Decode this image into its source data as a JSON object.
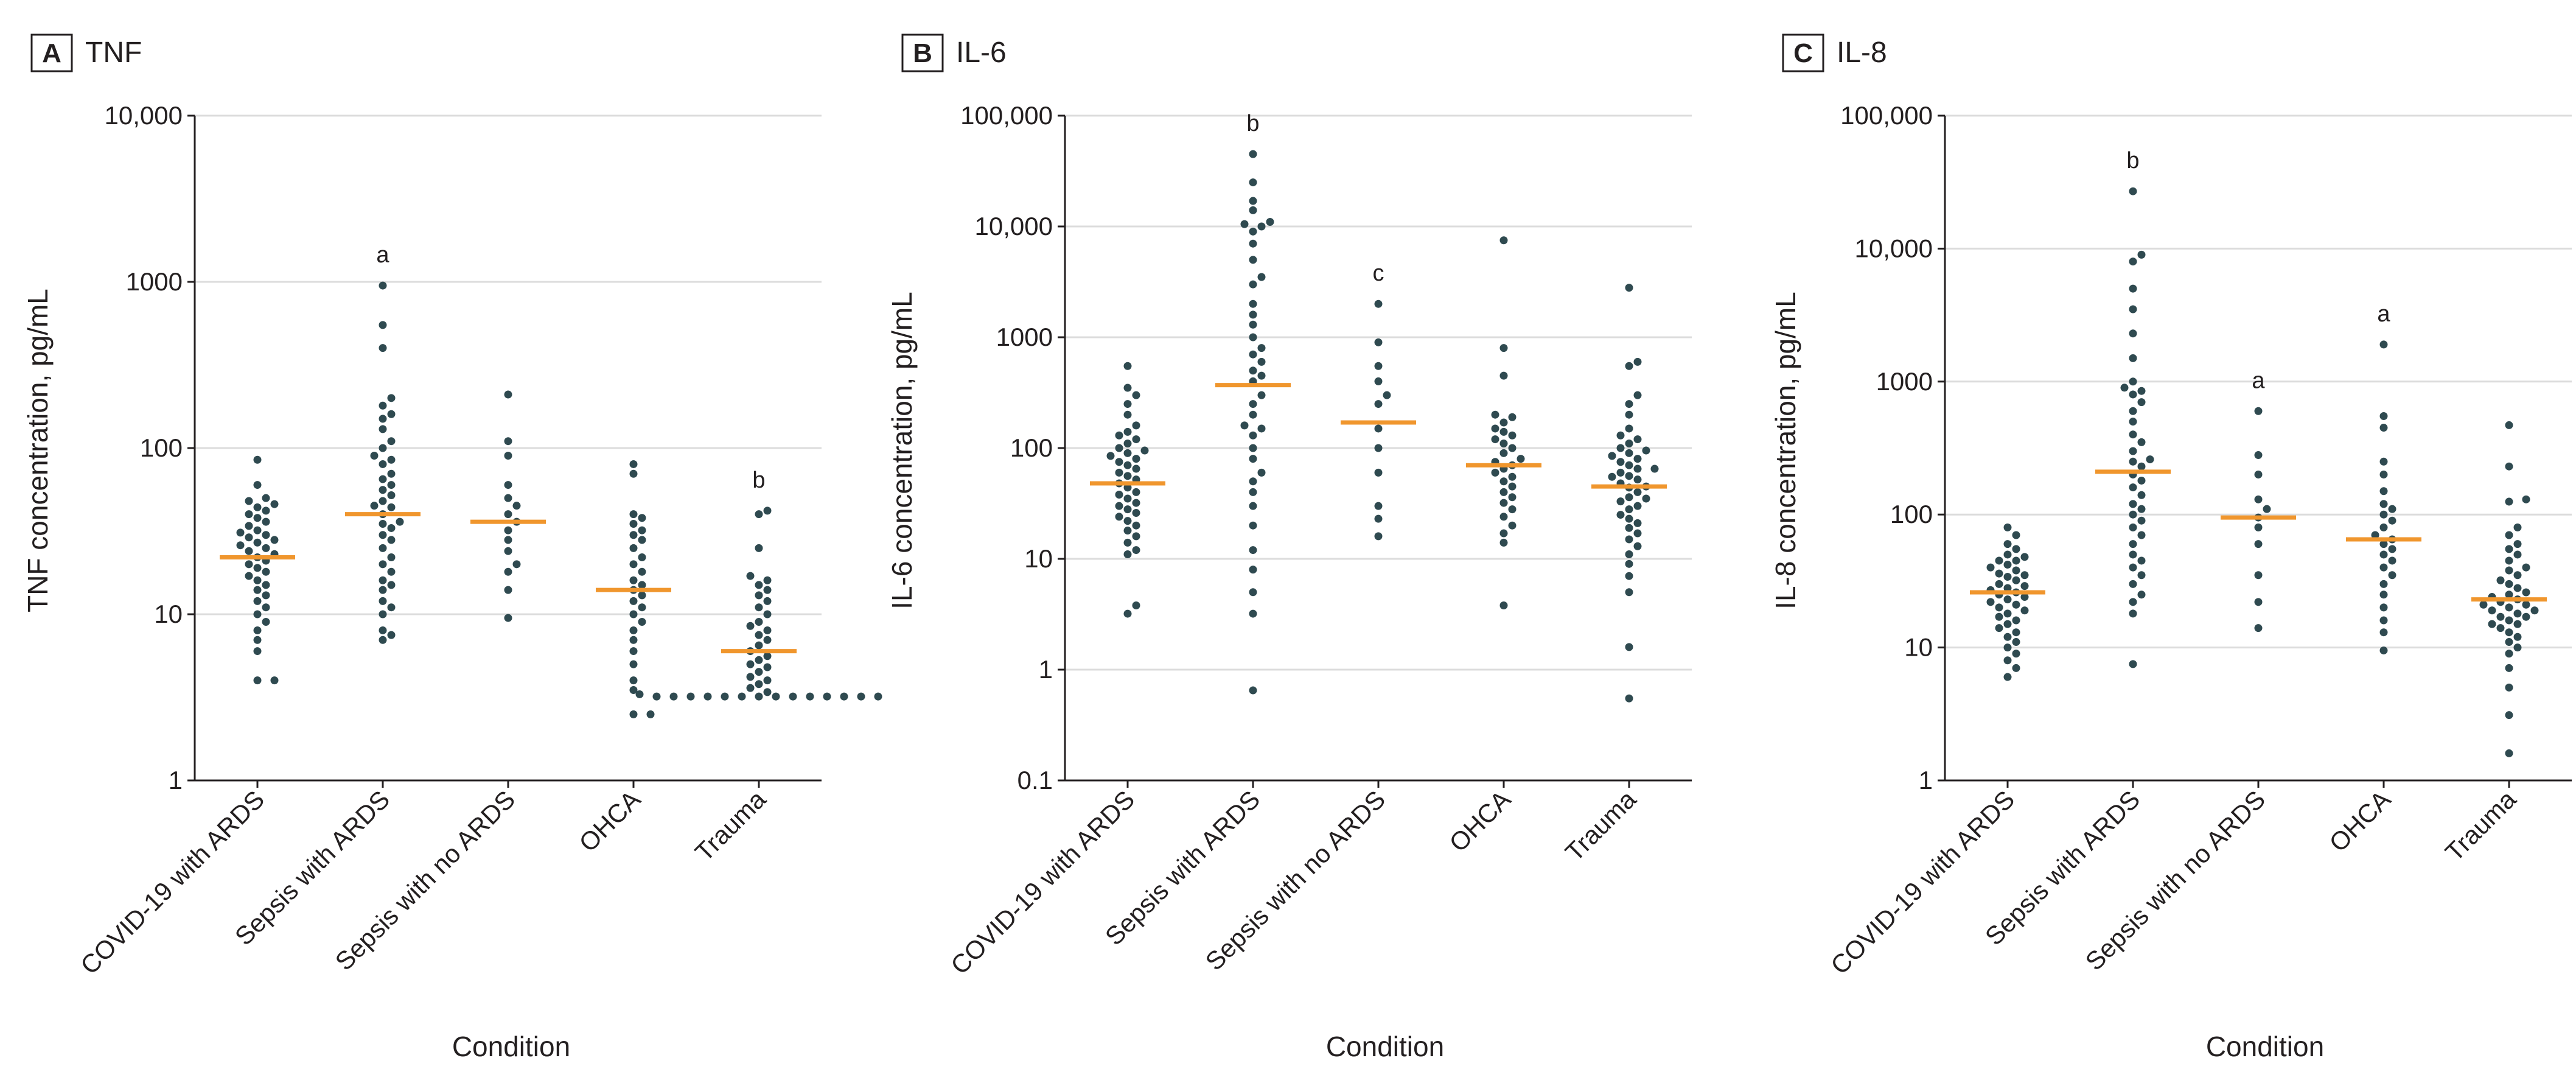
{
  "colors": {
    "point": "#2f4a50",
    "median": "#f0962d",
    "grid": "#dcdcdc",
    "axis": "#231f20"
  },
  "chart_data": [
    {
      "type": "scatter",
      "panel_letter": "A",
      "title": "TNF",
      "xlabel": "Condition",
      "ylabel": "TNF concentration, pg/mL",
      "yscale": "log",
      "ylim": [
        1,
        10000
      ],
      "yticks": [
        1,
        10,
        100,
        1000,
        10000
      ],
      "ytick_labels": [
        "1",
        "10",
        "100",
        "1000",
        "10,000"
      ],
      "categories": [
        "COVID-19 with ARDS",
        "Sepsis with ARDS",
        "Sepsis with no ARDS",
        "OHCA",
        "Trauma"
      ],
      "medians": [
        22,
        40,
        36,
        14,
        6
      ],
      "significance": [
        "",
        "a",
        "",
        "",
        "b"
      ],
      "points": [
        [
          4,
          4,
          8,
          9,
          10,
          11,
          12,
          13,
          14,
          15,
          16,
          17,
          18,
          19,
          20,
          21,
          22,
          23,
          24,
          25,
          26,
          27,
          28,
          29,
          30,
          31,
          32,
          34,
          36,
          38,
          40,
          42,
          44,
          46,
          48,
          50,
          60,
          85,
          6,
          7
        ],
        [
          7,
          7.5,
          8,
          10,
          11,
          12,
          14,
          16,
          18,
          20,
          22,
          25,
          28,
          30,
          33,
          36,
          40,
          44,
          48,
          52,
          56,
          60,
          65,
          70,
          80,
          85,
          90,
          100,
          110,
          130,
          150,
          160,
          180,
          200,
          400,
          550,
          950,
          15,
          35,
          45
        ],
        [
          9.5,
          14,
          18,
          20,
          24,
          28,
          32,
          36,
          40,
          45,
          50,
          60,
          90,
          110,
          210
        ],
        [
          2.5,
          2.5,
          3.5,
          4,
          5,
          6,
          7,
          8,
          9,
          10,
          11,
          12,
          13,
          14,
          15,
          16,
          18,
          20,
          22,
          25,
          28,
          30,
          32,
          35,
          38,
          40,
          70,
          80
        ],
        [
          3.2,
          3.2,
          3.2,
          3.2,
          3.2,
          3.2,
          3.2,
          3.2,
          3.2,
          3.2,
          3.2,
          3.2,
          3.2,
          3.2,
          3.3,
          3.4,
          3.6,
          3.8,
          4,
          4.2,
          4.5,
          4.8,
          5,
          5.3,
          5.6,
          6,
          6.5,
          7,
          7.5,
          8,
          8.5,
          9,
          10,
          11,
          12,
          13,
          14,
          15,
          16,
          17,
          25,
          40,
          42
        ]
      ]
    },
    {
      "type": "scatter",
      "panel_letter": "B",
      "title": "IL-6",
      "xlabel": "Condition",
      "ylabel": "IL-6 concentration, pg/mL",
      "yscale": "log",
      "ylim": [
        0.1,
        100000
      ],
      "yticks": [
        0.1,
        1,
        10,
        100,
        1000,
        10000,
        100000
      ],
      "ytick_labels": [
        "0.1",
        "1",
        "10",
        "100",
        "1000",
        "10,000",
        "100,000"
      ],
      "categories": [
        "COVID-19 with ARDS",
        "Sepsis with ARDS",
        "Sepsis with no ARDS",
        "OHCA",
        "Trauma"
      ],
      "medians": [
        48,
        370,
        170,
        70,
        45
      ],
      "significance": [
        "",
        "b",
        "c",
        "",
        ""
      ],
      "points": [
        [
          3.2,
          3.8,
          11,
          12,
          14,
          16,
          18,
          20,
          22,
          24,
          26,
          28,
          30,
          32,
          35,
          38,
          40,
          44,
          48,
          52,
          56,
          60,
          65,
          70,
          75,
          80,
          85,
          90,
          95,
          100,
          110,
          120,
          130,
          140,
          160,
          200,
          250,
          300,
          350,
          550
        ],
        [
          0.65,
          3.2,
          5,
          8,
          12,
          20,
          30,
          40,
          50,
          60,
          80,
          100,
          130,
          160,
          200,
          250,
          300,
          400,
          500,
          600,
          800,
          1000,
          1300,
          1600,
          2000,
          3000,
          3500,
          5000,
          7000,
          9000,
          10000,
          10500,
          11000,
          14000,
          17000,
          25000,
          45000,
          450,
          700,
          150
        ],
        [
          16,
          23,
          30,
          60,
          100,
          150,
          250,
          300,
          400,
          550,
          900,
          2000
        ],
        [
          3.8,
          14,
          17,
          20,
          24,
          28,
          32,
          36,
          40,
          45,
          50,
          55,
          60,
          65,
          70,
          75,
          80,
          90,
          100,
          110,
          120,
          130,
          140,
          150,
          170,
          190,
          200,
          450,
          800,
          7500
        ],
        [
          0.55,
          1.6,
          5,
          7,
          9,
          11,
          13,
          15,
          17,
          19,
          21,
          23,
          25,
          28,
          30,
          33,
          36,
          40,
          44,
          48,
          52,
          56,
          60,
          65,
          70,
          75,
          80,
          85,
          90,
          95,
          100,
          110,
          120,
          130,
          150,
          200,
          250,
          300,
          550,
          600,
          2800,
          35,
          45,
          55,
          65
        ]
      ]
    },
    {
      "type": "scatter",
      "panel_letter": "C",
      "title": "IL-8",
      "xlabel": "Condition",
      "ylabel": "IL-8 concentration, pg/mL",
      "yscale": "log",
      "ylim": [
        1,
        100000
      ],
      "yticks": [
        1,
        10,
        100,
        1000,
        10000,
        100000
      ],
      "ytick_labels": [
        "1",
        "10",
        "100",
        "1000",
        "10,000",
        "100,000"
      ],
      "categories": [
        "COVID-19 with ARDS",
        "Sepsis with ARDS",
        "Sepsis with no ARDS",
        "OHCA",
        "Trauma"
      ],
      "medians": [
        26,
        210,
        95,
        65,
        23
      ],
      "significance": [
        "",
        "b",
        "a",
        "a",
        ""
      ],
      "points": [
        [
          6,
          7,
          8,
          9,
          10,
          11,
          12,
          13,
          14,
          15,
          16,
          17,
          18,
          19,
          20,
          21,
          22,
          23,
          24,
          25,
          26,
          27,
          28,
          29,
          30,
          32,
          34,
          36,
          38,
          40,
          42,
          45,
          48,
          50,
          55,
          60,
          70,
          80,
          35,
          45
        ],
        [
          7.5,
          18,
          22,
          25,
          30,
          35,
          40,
          50,
          60,
          70,
          80,
          90,
          100,
          120,
          140,
          160,
          180,
          200,
          230,
          260,
          300,
          350,
          400,
          500,
          600,
          700,
          800,
          900,
          1000,
          1500,
          2300,
          3500,
          5000,
          8000,
          9000,
          27000,
          110,
          250,
          850,
          45
        ],
        [
          14,
          22,
          35,
          60,
          80,
          95,
          110,
          130,
          200,
          280,
          600
        ],
        [
          9.5,
          13,
          16,
          20,
          25,
          30,
          35,
          40,
          45,
          50,
          55,
          60,
          65,
          70,
          80,
          90,
          100,
          110,
          120,
          150,
          200,
          250,
          450,
          550,
          1900
        ],
        [
          1.6,
          3.1,
          5,
          7,
          9,
          10,
          11,
          12,
          13,
          14,
          15,
          16,
          17,
          18,
          19,
          20,
          21,
          22,
          23,
          24,
          25,
          26,
          28,
          30,
          32,
          35,
          38,
          40,
          45,
          50,
          55,
          60,
          70,
          80,
          125,
          130,
          230,
          470,
          15,
          17,
          19,
          21
        ]
      ]
    }
  ]
}
